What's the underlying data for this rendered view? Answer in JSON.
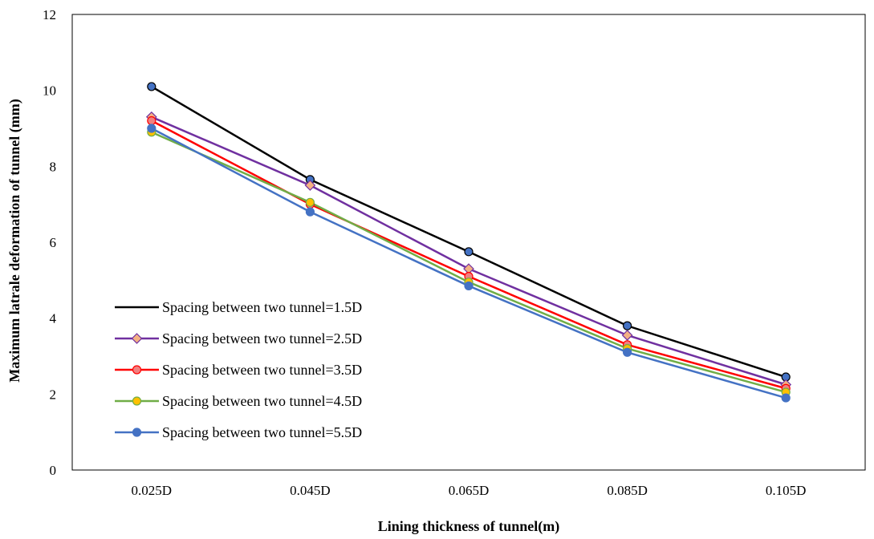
{
  "chart_data": {
    "type": "line",
    "title": "",
    "xlabel": "Lining thickness of tunnel(m)",
    "ylabel": "Maximum latrale deformation of tunnel (mm)",
    "categories": [
      "0.025D",
      "0.045D",
      "0.065D",
      "0.085D",
      "0.105D"
    ],
    "ylim": [
      0,
      12
    ],
    "yticks": [
      0,
      2,
      4,
      6,
      8,
      10,
      12
    ],
    "grid": false,
    "legend_position": "bottom-left",
    "series": [
      {
        "name": "Spacing between two tunnel=1.5D",
        "values": [
          10.1,
          7.65,
          5.75,
          3.8,
          2.45
        ],
        "color": "#000000",
        "marker_fill": "#4472c4",
        "legend_marker": "none"
      },
      {
        "name": "Spacing between two tunnel=2.5D",
        "values": [
          9.3,
          7.5,
          5.3,
          3.55,
          2.25
        ],
        "color": "#7030a0",
        "marker_fill": "#f4b183",
        "legend_marker": "diamond"
      },
      {
        "name": "Spacing between two tunnel=3.5D",
        "values": [
          9.2,
          7.0,
          5.1,
          3.3,
          2.15
        ],
        "color": "#ff0000",
        "marker_fill": "#f08080",
        "legend_marker": "circle"
      },
      {
        "name": "Spacing between two tunnel=4.5D",
        "values": [
          8.9,
          7.05,
          4.95,
          3.2,
          2.05
        ],
        "color": "#70ad47",
        "marker_fill": "#ffc000",
        "legend_marker": "circle"
      },
      {
        "name": "Spacing between two tunnel=5.5D",
        "values": [
          9.0,
          6.8,
          4.85,
          3.1,
          1.9
        ],
        "color": "#4472c4",
        "marker_fill": "#4472c4",
        "legend_marker": "circle"
      }
    ]
  }
}
